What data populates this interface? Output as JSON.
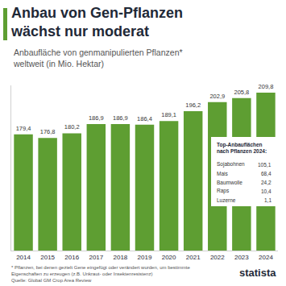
{
  "chart_data": {
    "type": "bar",
    "title": "Anbau von Gen-Pflanzen wächst nur moderat",
    "subtitle": "Anbaufläche von genmanipulierten Pflanzen* weltweit (in Mio. Hektar)",
    "categories": [
      "2014",
      "2015",
      "2016",
      "2017",
      "2018",
      "2019",
      "2020",
      "2021",
      "2022",
      "2023",
      "2024"
    ],
    "values": [
      179.4,
      176.8,
      180.2,
      186.9,
      186.9,
      186.4,
      189.1,
      196.2,
      202.9,
      205.8,
      209.8
    ],
    "value_labels": [
      "179,4",
      "176,8",
      "180,2",
      "186,9",
      "186,9",
      "186,4",
      "189,1",
      "196,2",
      "202,9",
      "205,8",
      "209,8"
    ],
    "color": "#5e9e32",
    "ylim": [
      95,
      215
    ],
    "grid": false,
    "data_labels": true,
    "tick_labels": "x",
    "inset": {
      "title": "Top-Anbauflächen nach Pflanzen 2024:",
      "rows": [
        [
          "Sojabohnen",
          "105,1"
        ],
        [
          "Mais",
          "68,4"
        ],
        [
          "Baumwolle",
          "24,2"
        ],
        [
          "Raps",
          "10,4"
        ],
        [
          "Luzerne",
          "1,1"
        ]
      ]
    },
    "footnote": "* Pflanzen, bei denen gezielt Gene eingefügt oder verändert wurden, um bestimmte Eigenschaften zu erzeugen (z.B. Unkraut- oder Insektenresistenz)",
    "source": "Quelle: Global GM Crop Area Review",
    "brand": "statista"
  }
}
